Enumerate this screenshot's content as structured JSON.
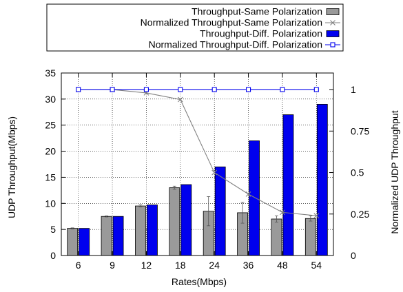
{
  "chart_data": {
    "type": "bar",
    "categories": [
      "6",
      "9",
      "12",
      "18",
      "24",
      "36",
      "48",
      "54"
    ],
    "xlabel": "Rates(Mbps)",
    "ylabel": "UDP Throughput(Mbps)",
    "y2label": "Normalized UDP Throughput",
    "ylim": [
      0,
      35
    ],
    "yticks": [
      "0",
      "5",
      "10",
      "15",
      "20",
      "25",
      "30",
      "35"
    ],
    "y2lim": [
      0,
      1.1
    ],
    "y2ticks": [
      {
        "value": 0,
        "label": "0"
      },
      {
        "value": 0.25,
        "label": "0.25"
      },
      {
        "value": 0.5,
        "label": "0.5"
      },
      {
        "value": 0.75,
        "label": "0.75"
      },
      {
        "value": 1,
        "label": "1"
      }
    ],
    "grid": true,
    "legend_position": "top",
    "series": [
      {
        "name": "Throughput-Same Polarization",
        "kind": "bar",
        "axis": "left",
        "color": "#9a9a9a",
        "values": [
          5.2,
          7.5,
          9.5,
          13.0,
          8.5,
          8.2,
          7.0,
          7.1
        ],
        "error": [
          0.1,
          0.1,
          0.2,
          0.3,
          2.8,
          2.0,
          0.6,
          0.5
        ]
      },
      {
        "name": "Normalized Throughput-Same Polarization",
        "kind": "line",
        "axis": "right",
        "color": "#808080",
        "marker": "x",
        "values": [
          1.0,
          1.0,
          0.98,
          0.94,
          0.5,
          0.37,
          0.26,
          0.24
        ]
      },
      {
        "name": "Throughput-Diff. Polarization",
        "kind": "bar",
        "axis": "left",
        "color": "#0000ee",
        "values": [
          5.2,
          7.5,
          9.7,
          13.6,
          17.0,
          22.0,
          27.0,
          29.0
        ]
      },
      {
        "name": "Normalized Throughput-Diff. Polarization",
        "kind": "line",
        "axis": "right",
        "color": "#0000ee",
        "marker": "square",
        "values": [
          1.0,
          1.0,
          1.0,
          1.0,
          1.0,
          1.0,
          1.0,
          1.0
        ]
      }
    ]
  }
}
